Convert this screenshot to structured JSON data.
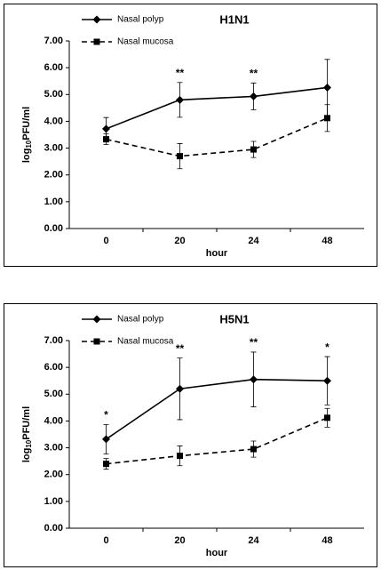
{
  "chart_data": [
    {
      "type": "line",
      "title": "H1N1",
      "x_label": "hour",
      "y_label": {
        "prefix": "log",
        "sub": "10",
        "suffix": "PFU/ml"
      },
      "categories": [
        "0",
        "20",
        "24",
        "48"
      ],
      "series": [
        {
          "name": "Nasal polyp",
          "color": "#000000",
          "marker": "diamond",
          "dash": false,
          "values": [
            3.72,
            4.8,
            4.93,
            5.26
          ],
          "errors": [
            0.42,
            0.65,
            0.5,
            1.05
          ]
        },
        {
          "name": "Nasal mucosa",
          "color": "#000000",
          "marker": "square",
          "dash": true,
          "values": [
            3.33,
            2.7,
            2.95,
            4.12
          ],
          "errors": [
            0.2,
            0.47,
            0.3,
            0.5
          ]
        }
      ],
      "annotations": [
        null,
        "**",
        "**",
        null
      ],
      "ylim": [
        0,
        7
      ],
      "yticks": [
        {
          "value": 0,
          "label": "0.00"
        },
        {
          "value": 1,
          "label": "1.00"
        },
        {
          "value": 2,
          "label": "2.00"
        },
        {
          "value": 3,
          "label": "3.00"
        },
        {
          "value": 4,
          "label": "4.00"
        },
        {
          "value": 5,
          "label": "5.00"
        },
        {
          "value": 6,
          "label": "6.00"
        },
        {
          "value": 7,
          "label": "7.00"
        }
      ]
    },
    {
      "type": "line",
      "title": "H5N1",
      "x_label": "hour",
      "y_label": {
        "prefix": "log",
        "sub": "10",
        "suffix": "PFU/ml"
      },
      "categories": [
        "0",
        "20",
        "24",
        "48"
      ],
      "series": [
        {
          "name": "Nasal polyp",
          "color": "#000000",
          "marker": "diamond",
          "dash": false,
          "values": [
            3.32,
            5.2,
            5.55,
            5.5
          ],
          "errors": [
            0.55,
            1.15,
            1.02,
            0.9
          ]
        },
        {
          "name": "Nasal mucosa",
          "color": "#000000",
          "marker": "square",
          "dash": true,
          "values": [
            2.4,
            2.7,
            2.95,
            4.12
          ],
          "errors": [
            0.2,
            0.37,
            0.3,
            0.35
          ]
        }
      ],
      "annotations": [
        "*",
        "**",
        "**",
        "*"
      ],
      "ylim": [
        0,
        7
      ],
      "yticks": [
        {
          "value": 0,
          "label": "0.00"
        },
        {
          "value": 1,
          "label": "1.00"
        },
        {
          "value": 2,
          "label": "2.00"
        },
        {
          "value": 3,
          "label": "3.00"
        },
        {
          "value": 4,
          "label": "4.00"
        },
        {
          "value": 5,
          "label": "5.00"
        },
        {
          "value": 6,
          "label": "6.00"
        },
        {
          "value": 7,
          "label": "7.00"
        }
      ]
    }
  ]
}
